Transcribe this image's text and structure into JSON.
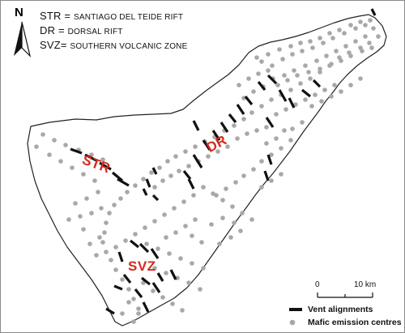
{
  "north": {
    "label": "N"
  },
  "key": [
    {
      "abbr": "STR",
      "eq": " = ",
      "name": "SANTIAGO DEL TEIDE RIFT"
    },
    {
      "abbr": "DR",
      "eq": " = ",
      "name": "DORSAL RIFT"
    },
    {
      "abbr": "SVZ",
      "eq": "= ",
      "name": "SOUTHERN VOLCANIC ZONE"
    }
  ],
  "regions": {
    "str": "STR",
    "dr": "DR",
    "svz": "SVZ"
  },
  "scale": {
    "zero": "0",
    "end": "10 km"
  },
  "legend": {
    "vent": "Vent alignments",
    "mafic": "Mafic emission centres"
  },
  "colors": {
    "region_label": "#d42a1f",
    "dot": "#a8a8a8",
    "vent": "#111111",
    "coast": "#222222"
  }
}
